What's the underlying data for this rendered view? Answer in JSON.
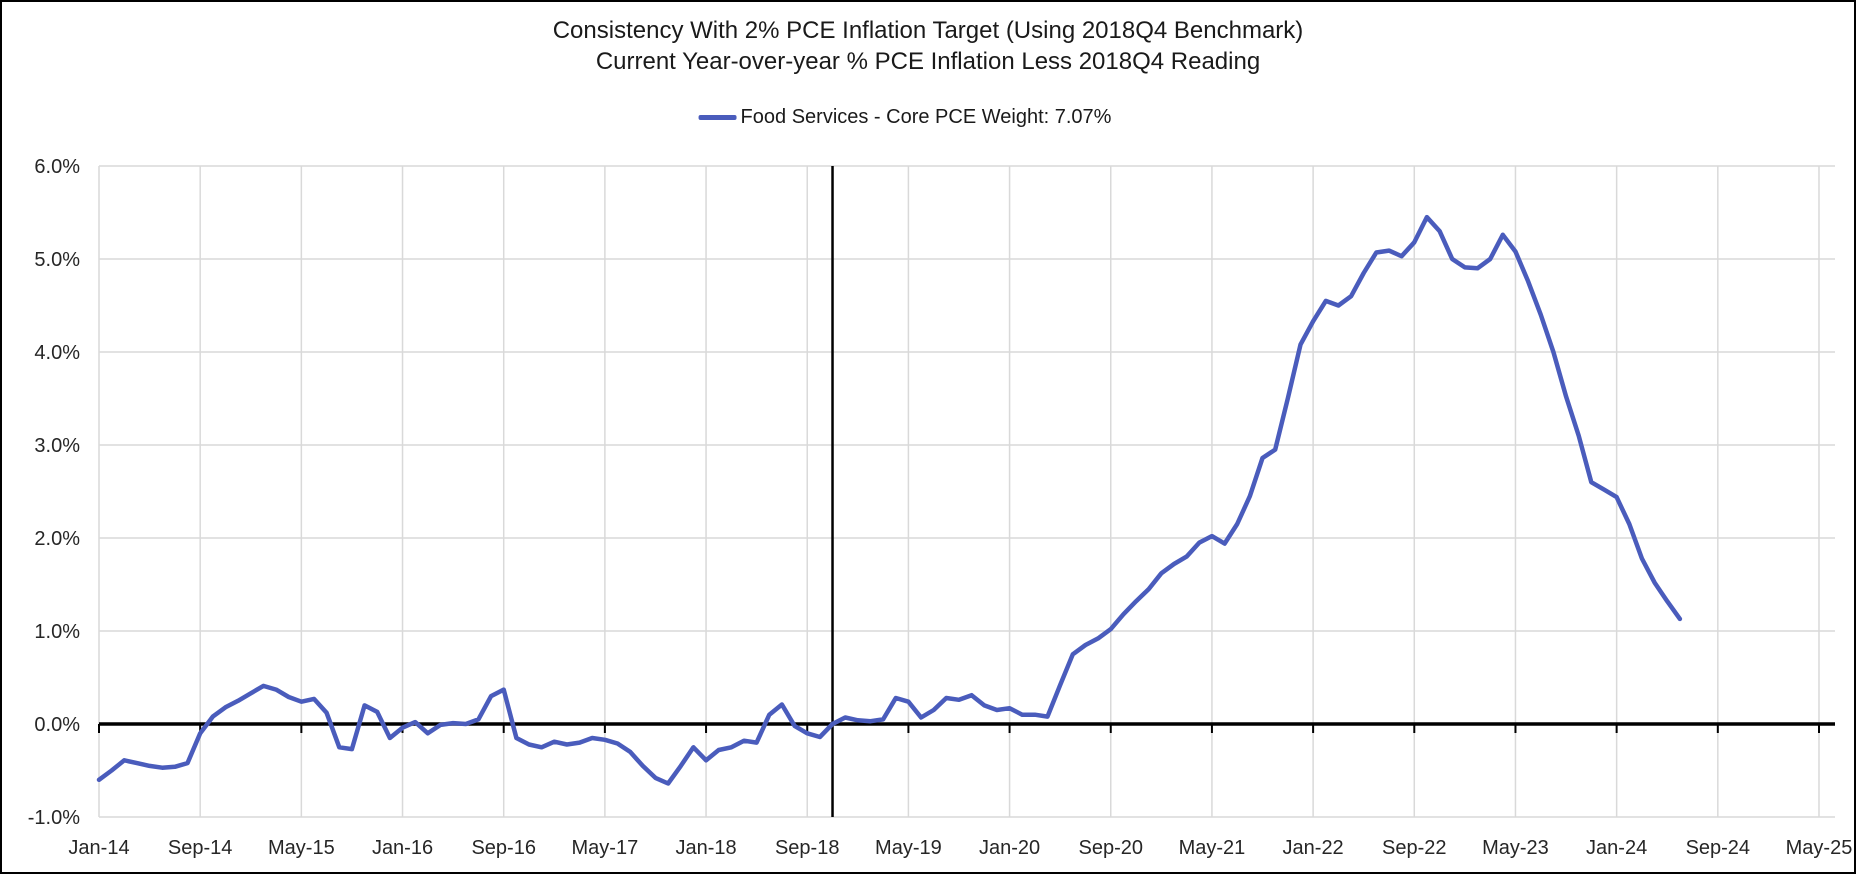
{
  "chart_data": {
    "type": "line",
    "title": "Consistency With 2% PCE Inflation Target (Using 2018Q4 Benchmark)",
    "subtitle": "Current Year-over-year % PCE Inflation Less 2018Q4 Reading",
    "legend_position": "top",
    "grid": true,
    "ylim": [
      -1.0,
      6.0
    ],
    "y_tick_labels": [
      {
        "label": "6.0%",
        "value": 6.0
      },
      {
        "label": "5.0%",
        "value": 5.0
      },
      {
        "label": "4.0%",
        "value": 4.0
      },
      {
        "label": "3.0%",
        "value": 3.0
      },
      {
        "label": "2.0%",
        "value": 2.0
      },
      {
        "label": "1.0%",
        "value": 1.0
      },
      {
        "label": "0.0%",
        "value": 0.0
      },
      {
        "label": "-1.0%",
        "value": -1.0
      }
    ],
    "x_tick_labels": [
      "Jan-14",
      "Sep-14",
      "May-15",
      "Jan-16",
      "Sep-16",
      "May-17",
      "Jan-18",
      "Sep-18",
      "May-19",
      "Jan-20",
      "Sep-20",
      "May-21",
      "Jan-22",
      "Sep-22",
      "May-23",
      "Jan-24",
      "Sep-24",
      "May-25"
    ],
    "months_per_tick": 8,
    "benchmark_vline": {
      "month": "Nov-18",
      "month_index": 58,
      "color": "#000000"
    },
    "months": [
      "Jan-14",
      "Feb-14",
      "Mar-14",
      "Apr-14",
      "May-14",
      "Jun-14",
      "Jul-14",
      "Aug-14",
      "Sep-14",
      "Oct-14",
      "Nov-14",
      "Dec-14",
      "Jan-15",
      "Feb-15",
      "Mar-15",
      "Apr-15",
      "May-15",
      "Jun-15",
      "Jul-15",
      "Aug-15",
      "Sep-15",
      "Oct-15",
      "Nov-15",
      "Dec-15",
      "Jan-16",
      "Feb-16",
      "Mar-16",
      "Apr-16",
      "May-16",
      "Jun-16",
      "Jul-16",
      "Aug-16",
      "Sep-16",
      "Oct-16",
      "Nov-16",
      "Dec-16",
      "Jan-17",
      "Feb-17",
      "Mar-17",
      "Apr-17",
      "May-17",
      "Jun-17",
      "Jul-17",
      "Aug-17",
      "Sep-17",
      "Oct-17",
      "Nov-17",
      "Dec-17",
      "Jan-18",
      "Feb-18",
      "Mar-18",
      "Apr-18",
      "May-18",
      "Jun-18",
      "Jul-18",
      "Aug-18",
      "Sep-18",
      "Oct-18",
      "Nov-18",
      "Dec-18",
      "Jan-19",
      "Feb-19",
      "Mar-19",
      "Apr-19",
      "May-19",
      "Jun-19",
      "Jul-19",
      "Aug-19",
      "Sep-19",
      "Oct-19",
      "Nov-19",
      "Dec-19",
      "Jan-20",
      "Feb-20",
      "Mar-20",
      "Apr-20",
      "May-20",
      "Jun-20",
      "Jul-20",
      "Aug-20",
      "Sep-20",
      "Oct-20",
      "Nov-20",
      "Dec-20",
      "Jan-21",
      "Feb-21",
      "Mar-21",
      "Apr-21",
      "May-21",
      "Jun-21",
      "Jul-21",
      "Aug-21",
      "Sep-21",
      "Oct-21",
      "Nov-21",
      "Dec-21",
      "Jan-22",
      "Feb-22",
      "Mar-22",
      "Apr-22",
      "May-22",
      "Jun-22",
      "Jul-22",
      "Aug-22",
      "Sep-22",
      "Oct-22",
      "Nov-22",
      "Dec-22",
      "Jan-23",
      "Feb-23",
      "Mar-23",
      "Apr-23",
      "May-23",
      "Jun-23",
      "Jul-23",
      "Aug-23",
      "Sep-23",
      "Oct-23",
      "Nov-23",
      "Dec-23",
      "Jan-24",
      "Feb-24",
      "Mar-24",
      "Apr-24",
      "May-24",
      "Jun-24"
    ],
    "series": [
      {
        "name": "Food Services - Core PCE Weight: 7.07%",
        "color": "#4a5cbc",
        "values": [
          -0.6,
          -0.5,
          -0.39,
          -0.42,
          -0.45,
          -0.47,
          -0.46,
          -0.42,
          -0.1,
          0.08,
          0.18,
          0.25,
          0.33,
          0.41,
          0.37,
          0.29,
          0.24,
          0.27,
          0.12,
          -0.25,
          -0.27,
          0.2,
          0.13,
          -0.15,
          -0.04,
          0.02,
          -0.1,
          -0.01,
          0.01,
          0.0,
          0.05,
          0.3,
          0.37,
          -0.15,
          -0.22,
          -0.25,
          -0.19,
          -0.22,
          -0.2,
          -0.15,
          -0.17,
          -0.21,
          -0.3,
          -0.45,
          -0.58,
          -0.64,
          -0.45,
          -0.25,
          -0.39,
          -0.28,
          -0.25,
          -0.18,
          -0.2,
          0.1,
          0.21,
          -0.02,
          -0.1,
          -0.14,
          0.0,
          0.07,
          0.04,
          0.03,
          0.05,
          0.28,
          0.24,
          0.07,
          0.15,
          0.28,
          0.26,
          0.31,
          0.2,
          0.15,
          0.17,
          0.1,
          0.1,
          0.08,
          0.42,
          0.75,
          0.85,
          0.92,
          1.02,
          1.18,
          1.32,
          1.45,
          1.62,
          1.72,
          1.8,
          1.95,
          2.02,
          1.94,
          2.15,
          2.45,
          2.86,
          2.95,
          3.5,
          4.08,
          4.33,
          4.55,
          4.5,
          4.6,
          4.85,
          5.07,
          5.09,
          5.03,
          5.18,
          5.45,
          5.3,
          5.0,
          4.91,
          4.9,
          5.0,
          5.26,
          5.08,
          4.76,
          4.4,
          4.0,
          3.52,
          3.1,
          2.6,
          2.52,
          2.44,
          2.15,
          1.78,
          1.52,
          1.32,
          1.13
        ]
      }
    ],
    "colors": {
      "grid": "#d9d9d9",
      "axis": "#000000",
      "labels": "#262626"
    }
  }
}
